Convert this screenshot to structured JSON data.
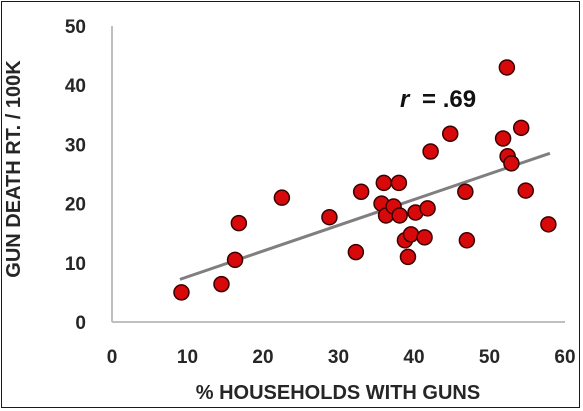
{
  "chart_data": {
    "type": "scatter",
    "title": "",
    "xlabel": "% HOUSEHOLDS WITH GUNS",
    "ylabel": "GUN DEATH RT. / 100K",
    "xlim": [
      0,
      60
    ],
    "ylim": [
      0,
      50
    ],
    "x_ticks": [
      0,
      10,
      20,
      30,
      40,
      50,
      60
    ],
    "y_ticks": [
      0,
      10,
      20,
      30,
      40,
      50
    ],
    "grid": false,
    "legend": "none",
    "annotation": {
      "r_symbol": "r",
      "r_value": "= .69"
    },
    "colors": {
      "marker_fill": "#d8090b",
      "marker_edge": "#3a0000",
      "trendline": "#7f7f7f",
      "axis": "#bfbfbf"
    },
    "trendline": {
      "x": [
        9,
        58
      ],
      "y": [
        7.2,
        28.5
      ]
    },
    "points": [
      {
        "x": 9.2,
        "y": 5.0
      },
      {
        "x": 14.5,
        "y": 6.4
      },
      {
        "x": 16.3,
        "y": 10.5
      },
      {
        "x": 16.8,
        "y": 16.7
      },
      {
        "x": 22.5,
        "y": 21.0
      },
      {
        "x": 28.8,
        "y": 17.7
      },
      {
        "x": 32.3,
        "y": 11.8
      },
      {
        "x": 33.0,
        "y": 22.0
      },
      {
        "x": 35.7,
        "y": 20.0
      },
      {
        "x": 36.0,
        "y": 23.5
      },
      {
        "x": 36.3,
        "y": 18.0
      },
      {
        "x": 37.3,
        "y": 19.5
      },
      {
        "x": 38.0,
        "y": 23.5
      },
      {
        "x": 38.1,
        "y": 18.0
      },
      {
        "x": 38.8,
        "y": 13.8
      },
      {
        "x": 39.2,
        "y": 11.0
      },
      {
        "x": 39.6,
        "y": 14.8
      },
      {
        "x": 40.2,
        "y": 18.5
      },
      {
        "x": 41.4,
        "y": 14.3
      },
      {
        "x": 41.8,
        "y": 19.2
      },
      {
        "x": 42.2,
        "y": 28.8
      },
      {
        "x": 44.8,
        "y": 31.8
      },
      {
        "x": 46.8,
        "y": 22.0
      },
      {
        "x": 47.0,
        "y": 13.8
      },
      {
        "x": 51.8,
        "y": 31.0
      },
      {
        "x": 52.3,
        "y": 43.0
      },
      {
        "x": 52.4,
        "y": 28.0
      },
      {
        "x": 52.9,
        "y": 26.8
      },
      {
        "x": 54.2,
        "y": 32.8
      },
      {
        "x": 54.8,
        "y": 22.2
      },
      {
        "x": 57.8,
        "y": 16.5
      }
    ]
  }
}
